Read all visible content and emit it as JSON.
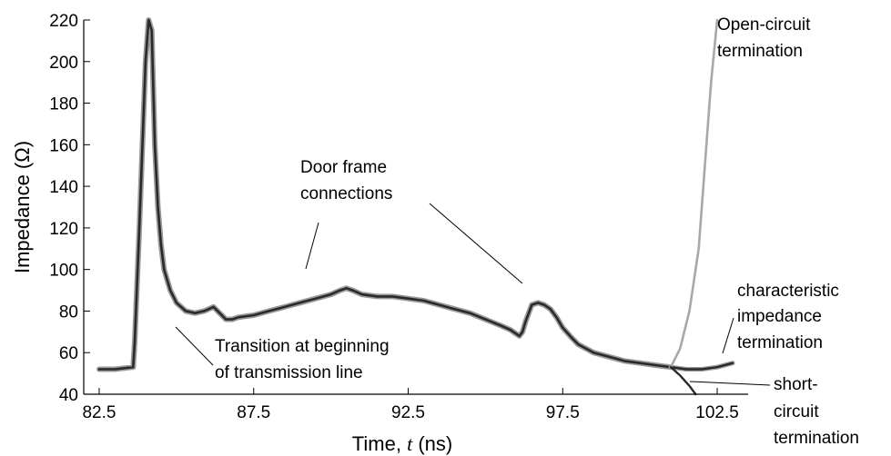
{
  "chart_data": {
    "type": "line",
    "xlabel": "Time, ",
    "xlabel_var": "t",
    "xlabel_unit": " (ns)",
    "ylabel": "Impedance (Ω)",
    "xlim": [
      82.0,
      103.5
    ],
    "ylim": [
      40,
      220
    ],
    "xticks": [
      82.5,
      87.5,
      92.5,
      97.5,
      102.5
    ],
    "xtick_labels": [
      "82.5",
      "87.5",
      "92.5",
      "97.5",
      "102.5"
    ],
    "yticks": [
      40,
      60,
      80,
      100,
      120,
      140,
      160,
      180,
      200,
      220
    ],
    "ytick_labels": [
      "40",
      "60",
      "80",
      "100",
      "120",
      "140",
      "160",
      "180",
      "200",
      "220"
    ],
    "colors": {
      "main": "#2a2a2a",
      "halo": "#9a9a9a",
      "open": "#a8a8a8",
      "short": "#2a2a2a"
    },
    "series": [
      {
        "x": [
          82.5,
          83.0,
          83.6,
          83.65,
          83.8,
          84.0,
          84.1,
          84.2,
          84.3,
          84.4,
          84.5,
          84.6,
          84.8,
          85.0,
          85.3,
          85.6,
          85.9,
          86.2,
          86.4,
          86.6,
          86.8,
          87.0,
          87.5,
          88.0,
          88.5,
          89.0,
          89.5,
          90.0,
          90.3,
          90.5,
          90.7,
          91.0,
          91.5,
          92.0,
          92.5,
          93.0,
          93.5,
          94.0,
          94.5,
          95.0,
          95.5,
          95.8,
          96.0,
          96.1,
          96.2,
          96.3,
          96.5,
          96.7,
          96.9,
          97.1,
          97.3,
          97.5,
          97.8,
          98.0,
          98.5,
          99.0,
          99.5,
          100.0,
          100.5,
          101.0
        ],
        "values": [
          52,
          52,
          53,
          65,
          120,
          200,
          220,
          215,
          160,
          130,
          112,
          100,
          90,
          84,
          80,
          79,
          80,
          82,
          79,
          76,
          76,
          77,
          78,
          80,
          82,
          84,
          86,
          88,
          90,
          91,
          90,
          88,
          87,
          87,
          86,
          85,
          83,
          81,
          79,
          76,
          73,
          71,
          69,
          68,
          70,
          75,
          83,
          84,
          83,
          81,
          77,
          72,
          67,
          64,
          60,
          58,
          56,
          55,
          54,
          53
        ]
      },
      {
        "x": [
          101.0,
          101.5,
          102.0,
          102.5,
          103.0
        ],
        "values": [
          53,
          52,
          52,
          53,
          55
        ]
      },
      {
        "x": [
          101.0,
          101.3,
          101.6,
          101.9,
          102.1,
          102.3,
          102.5
        ],
        "values": [
          53,
          62,
          80,
          110,
          150,
          190,
          220
        ]
      },
      {
        "x": [
          101.0,
          101.3,
          101.6,
          101.8
        ],
        "values": [
          53,
          49,
          44,
          40
        ]
      }
    ],
    "annotations": [
      {
        "lines": [
          "Open-circuit",
          "termination"
        ]
      },
      {
        "lines": [
          "Door frame",
          "connections"
        ]
      },
      {
        "lines": [
          "characteristic",
          "impedance",
          "termination"
        ]
      },
      {
        "lines": [
          "Transition at beginning",
          "of transmission line"
        ]
      },
      {
        "lines": [
          "short-",
          "circuit",
          "termination"
        ]
      }
    ]
  }
}
